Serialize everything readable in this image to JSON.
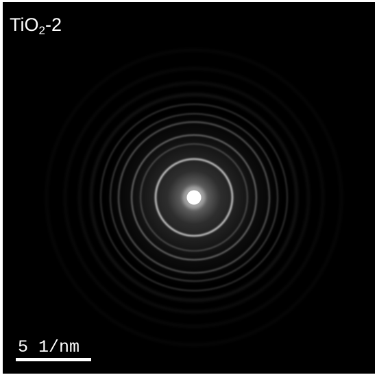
{
  "label": {
    "base": "TiO",
    "subscript": "2",
    "suffix": "-2"
  },
  "scale_bar": {
    "text": "5 1/nm"
  },
  "colors": {
    "background": "#000000",
    "rings": "#ffffff",
    "text": "#ffffff"
  }
}
